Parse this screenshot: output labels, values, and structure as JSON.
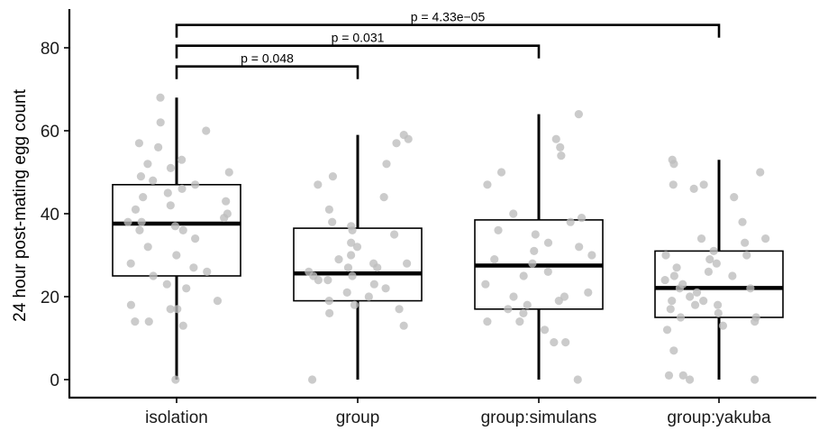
{
  "chart_data": {
    "type": "box",
    "ylabel": "24 hour post-mating egg count",
    "xlabel": "",
    "ylim": [
      -4,
      89
    ],
    "yticks": [
      0,
      20,
      40,
      60,
      80
    ],
    "grid": false,
    "categories": [
      "isolation",
      "group",
      "group:simulans",
      "group:yakuba"
    ],
    "boxes": [
      {
        "category": "isolation",
        "min": 0,
        "q1": 25,
        "median": 37.6,
        "q3": 47,
        "max": 68,
        "points": [
          0,
          13,
          14,
          14,
          17,
          17,
          18,
          19,
          22,
          23,
          25,
          26,
          27,
          28,
          30,
          32,
          34,
          36,
          36,
          37,
          38,
          38,
          39,
          40,
          41,
          42,
          43,
          44,
          45,
          46,
          47,
          48,
          49,
          50,
          51,
          52,
          53,
          56,
          57,
          60,
          62,
          68
        ]
      },
      {
        "category": "group",
        "min": 0,
        "q1": 19,
        "median": 25.6,
        "q3": 36.5,
        "max": 59,
        "points": [
          0,
          13,
          16,
          17,
          18,
          19,
          20,
          21,
          22,
          23,
          24,
          24,
          25,
          25,
          26,
          27,
          27,
          28,
          28,
          29,
          30,
          32,
          33,
          35,
          36,
          37,
          38,
          41,
          44,
          47,
          49,
          52,
          57,
          58,
          59
        ]
      },
      {
        "category": "group:simulans",
        "min": 0,
        "q1": 17,
        "median": 27.5,
        "q3": 38.5,
        "max": 64,
        "points": [
          0,
          9,
          9,
          12,
          14,
          14,
          16,
          17,
          18,
          19,
          20,
          20,
          21,
          23,
          25,
          26,
          28,
          29,
          30,
          31,
          32,
          33,
          35,
          36,
          38,
          39,
          40,
          47,
          50,
          54,
          56,
          58,
          64
        ]
      },
      {
        "category": "group:yakuba",
        "min": 0,
        "q1": 15,
        "median": 22.1,
        "q3": 31,
        "max": 53,
        "points": [
          0,
          0,
          1,
          1,
          7,
          12,
          13,
          14,
          15,
          15,
          16,
          17,
          18,
          18,
          19,
          19,
          20,
          21,
          22,
          22,
          23,
          24,
          25,
          25,
          26,
          27,
          28,
          29,
          30,
          30,
          31,
          33,
          34,
          34,
          38,
          44,
          46,
          47,
          47,
          50,
          52,
          53
        ]
      }
    ],
    "annotations": [
      {
        "from": "isolation",
        "to": "group",
        "label": "p = 0.048"
      },
      {
        "from": "isolation",
        "to": "group:simulans",
        "label": "p = 0.031"
      },
      {
        "from": "isolation",
        "to": "group:yakuba",
        "label": "p = 4.33e−05"
      }
    ]
  }
}
